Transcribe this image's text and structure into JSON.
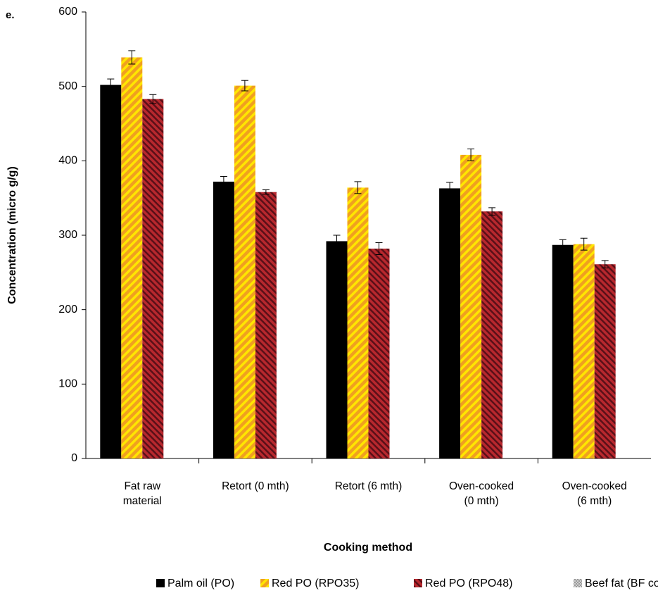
{
  "chart_data": {
    "type": "bar",
    "title": "e.",
    "xlabel": "Cooking method",
    "ylabel": "Concentration (micro g/g)",
    "categories": [
      "Fat raw material",
      "Retort (0 mth)",
      "Retort (6 mth)",
      "Oven-cooked (0 mth)",
      "Oven-cooked (6 mth)"
    ],
    "series": [
      {
        "name": "Palm oil (PO)",
        "color": "#000000",
        "values": [
          502,
          372,
          292,
          363,
          287
        ],
        "errors": [
          8,
          7,
          8,
          8,
          7
        ]
      },
      {
        "name": "Red PO (RPO35)",
        "color": "#f0a020",
        "values": [
          539,
          501,
          364,
          408,
          288
        ],
        "errors": [
          9,
          7,
          8,
          8,
          8
        ]
      },
      {
        "name": "Red PO (RPO48)",
        "color": "#b8282e",
        "values": [
          483,
          358,
          282,
          332,
          261
        ],
        "errors": [
          6,
          3,
          8,
          5,
          5
        ]
      },
      {
        "name": "Beef fat (BF control)",
        "color": "#999999",
        "values": [
          null,
          null,
          null,
          null,
          null
        ],
        "errors": [
          null,
          null,
          null,
          null,
          null
        ]
      }
    ],
    "ylim": [
      0,
      600
    ],
    "yticks": [
      0,
      100,
      200,
      300,
      400,
      500,
      600
    ],
    "grid": false,
    "legend": "bottom"
  }
}
